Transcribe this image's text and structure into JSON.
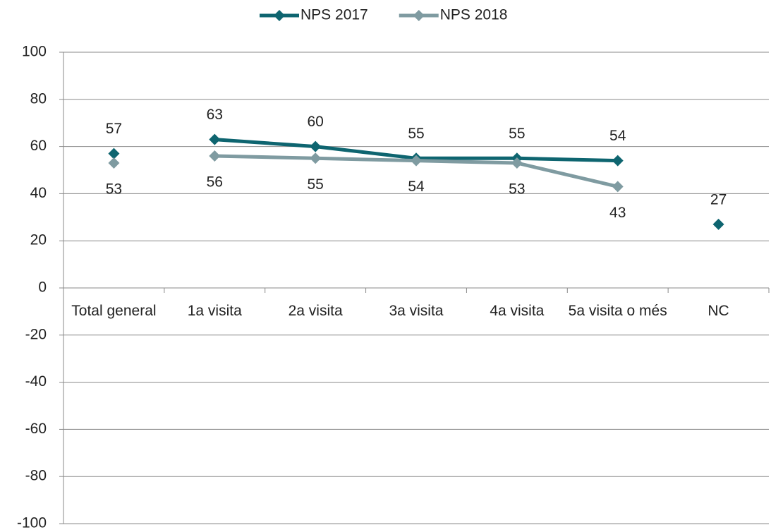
{
  "chart_data": {
    "type": "line",
    "categories": [
      "Total general",
      "1a visita",
      "2a visita",
      "3a visita",
      "4a visita",
      "5a visita o més",
      "NC"
    ],
    "series": [
      {
        "name": "NPS 2017",
        "color": "#0e6570",
        "values": [
          57,
          63,
          60,
          55,
          55,
          54,
          27
        ]
      },
      {
        "name": "NPS 2018",
        "color": "#7f9ba1",
        "values": [
          53,
          56,
          55,
          54,
          53,
          43,
          null
        ]
      }
    ],
    "ylim": [
      -100,
      100
    ],
    "yticks": [
      -100,
      -80,
      -60,
      -40,
      -20,
      0,
      20,
      40,
      60,
      80,
      100
    ],
    "grid": true,
    "legend": "top"
  }
}
